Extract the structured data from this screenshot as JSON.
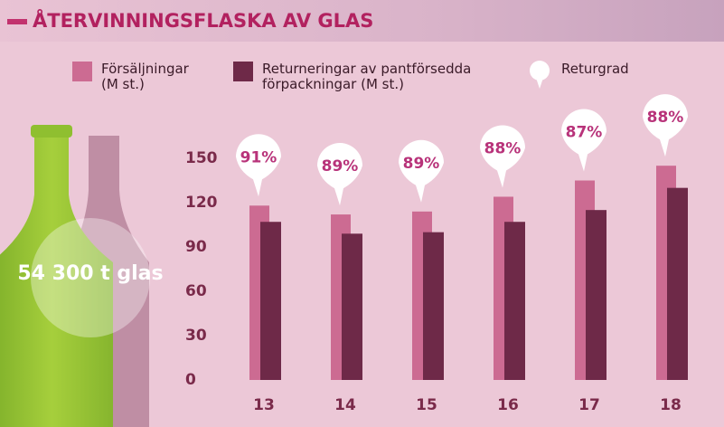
{
  "chart_data": {
    "type": "bar",
    "title": "ÅTERVINNINGSFLASKA AV GLAS",
    "annotation": "54 300 t glas",
    "categories": [
      "13",
      "14",
      "15",
      "16",
      "17",
      "18"
    ],
    "series": [
      {
        "name": "Försäljningar (M st.)",
        "color": "#cc6b92",
        "values": [
          118,
          112,
          114,
          124,
          135,
          145
        ]
      },
      {
        "name": "Returneringar av pantförsedda förpackningar (M st.)",
        "color": "#6e2948",
        "values": [
          107,
          99,
          100,
          107,
          115,
          130
        ]
      }
    ],
    "rate": {
      "name": "Returgrad",
      "values": [
        91,
        89,
        89,
        88,
        87,
        88
      ],
      "value_labels": [
        "91%",
        "89%",
        "89%",
        "88%",
        "87%",
        "88%"
      ],
      "color": "#b8337a"
    },
    "ylim": [
      0,
      150
    ],
    "yticks": [
      0,
      30,
      60,
      90,
      120,
      150
    ],
    "grid": false
  }
}
